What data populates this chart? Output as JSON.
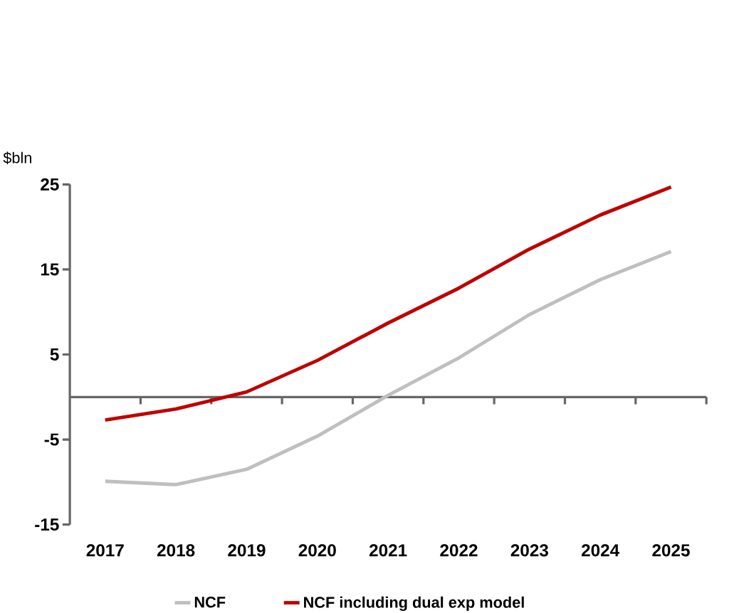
{
  "chart_data": {
    "type": "line",
    "ylabel": "$bln",
    "categories": [
      "2017",
      "2018",
      "2019",
      "2020",
      "2021",
      "2022",
      "2023",
      "2024",
      "2025"
    ],
    "series": [
      {
        "name": "NCF",
        "color": "#bfbfbf",
        "values": [
          -9.9,
          -10.3,
          -8.5,
          -4.6,
          0.2,
          4.6,
          9.7,
          13.8,
          17.1
        ]
      },
      {
        "name": "NCF including dual exp model",
        "color": "#c00000",
        "values": [
          -2.7,
          -1.4,
          0.6,
          4.3,
          8.7,
          12.8,
          17.4,
          21.4,
          24.7
        ]
      }
    ],
    "ylim": [
      -15,
      25
    ],
    "yticks": [
      -15,
      -5,
      5,
      15,
      25
    ],
    "grid": false,
    "legend": "bottom",
    "marker": "none",
    "line_style": "solid"
  }
}
